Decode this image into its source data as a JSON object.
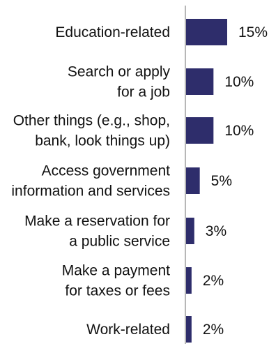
{
  "chart_data": {
    "type": "bar",
    "orientation": "horizontal",
    "bar_color": "#2e2d6b",
    "axis_color": "#b7b7b7",
    "categories": [
      [
        "Education-related"
      ],
      [
        "Search or apply",
        "for a job"
      ],
      [
        "Other things (e.g., shop,",
        "bank, look things up)"
      ],
      [
        "Access government",
        "information and services"
      ],
      [
        "Make a reservation for",
        "a public service"
      ],
      [
        "Make a payment",
        "for taxes or fees"
      ],
      [
        "Work-related"
      ]
    ],
    "values": [
      15,
      10,
      10,
      5,
      3,
      2,
      2
    ],
    "value_labels": [
      "15%",
      "10%",
      "10%",
      "5%",
      "3%",
      "2%",
      "2%"
    ],
    "xlim": [
      0,
      15
    ],
    "grid": false,
    "legend": "none"
  }
}
